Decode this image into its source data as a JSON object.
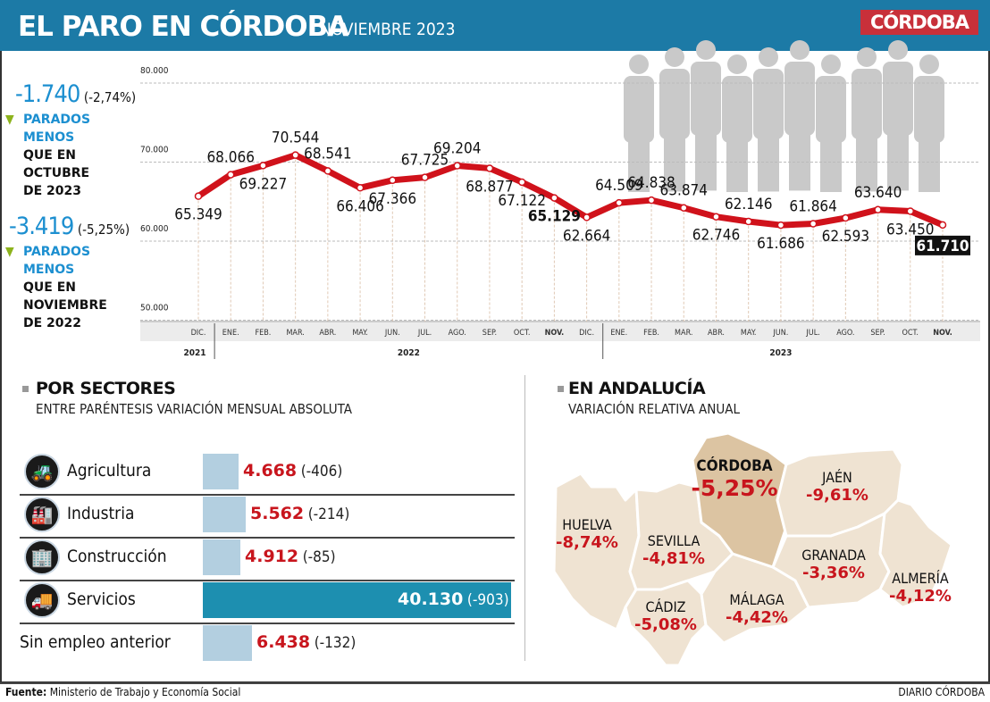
{
  "header": {
    "title": "EL PARO EN CÓRDOBA",
    "subtitle": "NOVIEMBRE 2023",
    "logo": "CÓRDOBA"
  },
  "summary": [
    {
      "change": "-1.740",
      "pct": "(-2,74%)",
      "line1": "PARADOS",
      "line2": "MENOS",
      "line3": "QUE EN",
      "line4": "OCTUBRE",
      "line5": "DE 2023"
    },
    {
      "change": "-3.419",
      "pct": "(-5,25%)",
      "line1": "PARADOS",
      "line2": "MENOS",
      "line3": "QUE EN",
      "line4": "NOVIEMBRE",
      "line5": "DE 2022"
    }
  ],
  "chart_data": {
    "type": "line",
    "ylim": [
      50000,
      80000
    ],
    "y_ticks": [
      "80.000",
      "70.000",
      "60.000",
      "50.000"
    ],
    "y_tick_values": [
      80000,
      70000,
      60000,
      50000
    ],
    "grid": true,
    "color": "#d0121b",
    "categories": [
      "DIC.",
      "ENE.",
      "FEB.",
      "MAR.",
      "ABR.",
      "MAY.",
      "JUN.",
      "JUL.",
      "AGO.",
      "SEP.",
      "OCT.",
      "NOV.",
      "DIC.",
      "ENE.",
      "FEB.",
      "MAR.",
      "ABR.",
      "MAY.",
      "JUN.",
      "JUL.",
      "AGO.",
      "SEP.",
      "OCT.",
      "NOV."
    ],
    "years": [
      {
        "label": "2021"
      },
      {
        "label": "2022"
      },
      {
        "label": "2023"
      }
    ],
    "values": [
      65349,
      68066,
      69227,
      70544,
      68541,
      66406,
      67366,
      67725,
      69204,
      68877,
      67122,
      65129,
      62664,
      64509,
      64838,
      63874,
      62746,
      62146,
      61686,
      61864,
      62593,
      63640,
      63450,
      61710
    ],
    "labels": [
      "65.349",
      "68.066",
      "69.227",
      "70.544",
      "68.541",
      "66.406",
      "67.366",
      "67.725",
      "69.204",
      "68.877",
      "67.122",
      "65.129",
      "62.664",
      "64.509",
      "64.838",
      "63.874",
      "62.746",
      "62.146",
      "61.686",
      "61.864",
      "62.593",
      "63.640",
      "63.450",
      "61.710"
    ],
    "highlight": [
      11,
      23
    ]
  },
  "sectors": {
    "title": "POR SECTORES",
    "subtitle": "ENTRE PARÉNTESIS VARIACIÓN MENSUAL ABSOLUTA",
    "rows": [
      {
        "label": "Agricultura",
        "value": 4668,
        "value_text": "4.668",
        "var": "(-406)",
        "icon": "tractor-icon"
      },
      {
        "label": "Industria",
        "value": 5562,
        "value_text": "5.562",
        "var": "(-214)",
        "icon": "factory-icon"
      },
      {
        "label": "Construcción",
        "value": 4912,
        "value_text": "4.912",
        "var": "(-85)",
        "icon": "buildings-icon"
      },
      {
        "label": "Servicios",
        "value": 40130,
        "value_text": "40.130",
        "var": "(-903)",
        "icon": "truck-icon"
      },
      {
        "label": "Sin empleo anterior",
        "value": 6438,
        "value_text": "6.438",
        "var": "(-132)",
        "icon": ""
      }
    ],
    "bar_color": "#b3cfe0",
    "highlight_color": "#1d8fb0"
  },
  "andalucia": {
    "title": "EN ANDALUCÍA",
    "subtitle": "VARIACIÓN RELATIVA ANUAL",
    "provinces": [
      {
        "name": "CÓRDOBA",
        "value": "-5,25%"
      },
      {
        "name": "JAÉN",
        "value": "-9,61%"
      },
      {
        "name": "HUELVA",
        "value": "-8,74%"
      },
      {
        "name": "SEVILLA",
        "value": "-4,81%"
      },
      {
        "name": "GRANADA",
        "value": "-3,36%"
      },
      {
        "name": "ALMERÍA",
        "value": "-4,12%"
      },
      {
        "name": "CÁDIZ",
        "value": "-5,08%"
      },
      {
        "name": "MÁLAGA",
        "value": "-4,42%"
      }
    ]
  },
  "footer": {
    "source_label": "Fuente:",
    "source": "Ministerio de Trabajo y Economía Social",
    "credit": "DIARIO CÓRDOBA"
  }
}
